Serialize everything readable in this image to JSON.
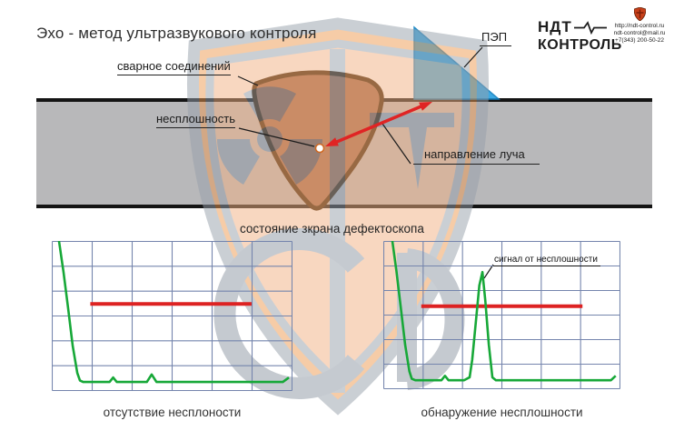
{
  "header": {
    "title": "Эхо - метод ультразвукового контроля",
    "brand": {
      "name_line1": "НДТ",
      "name_line2": "КОНТРОЛЬ",
      "website": "http://ndt-control.ru",
      "email": "ndt-control@mail.ru",
      "phone": "+7(343) 200-50-22"
    }
  },
  "diagram": {
    "caption": "состояние зкрана дефектоскопа",
    "labels": {
      "weld": "сварное соединений",
      "flaw": "несплошность",
      "probe": "ПЭП",
      "beam_direction": "направление луча"
    },
    "colors": {
      "plate": "#b8b8ba",
      "plate_edge": "#141414",
      "weld_fill": "#a1684a",
      "weld_outline": "#3c2104",
      "probe_blue": "#28a0e0",
      "probe_edge": "#1080c0",
      "beam_red": "#e02424",
      "flaw_dot": "#ffffff",
      "flaw_dot_ring": "#d06820"
    }
  },
  "chart_data": [
    {
      "type": "line",
      "title": "отсутствие несплоности",
      "grid": {
        "cols": 6,
        "rows": 6,
        "color": "#7585ad"
      },
      "x_range": [
        0,
        100
      ],
      "y_range": [
        0,
        100
      ],
      "series": [
        {
          "name": "echo-signal",
          "color": "#17a838",
          "points": [
            [
              3,
              100
            ],
            [
              4.9,
              79
            ],
            [
              6.8,
              55
            ],
            [
              8.7,
              30
            ],
            [
              10.6,
              12
            ],
            [
              11.7,
              7
            ],
            [
              13,
              6
            ],
            [
              22,
              6
            ],
            [
              24,
              6
            ],
            [
              25.5,
              9
            ],
            [
              27,
              6
            ],
            [
              36,
              6
            ],
            [
              39.5,
              6
            ],
            [
              41.5,
              11
            ],
            [
              43.5,
              6
            ],
            [
              60,
              6
            ],
            [
              96,
              6
            ],
            [
              98.5,
              9
            ]
          ]
        }
      ],
      "threshold": {
        "name": "gate-level",
        "color": "#dd2222",
        "y": 58,
        "x1": 16,
        "x2": 83
      },
      "legend": false
    },
    {
      "type": "line",
      "title": "обнаружение несплошности",
      "annotation": {
        "text": "сигнал от несплошности"
      },
      "grid": {
        "cols": 6,
        "rows": 6,
        "color": "#7585ad"
      },
      "x_range": [
        0,
        100
      ],
      "y_range": [
        0,
        100
      ],
      "series": [
        {
          "name": "echo-signal",
          "color": "#17a838",
          "points": [
            [
              3.8,
              100
            ],
            [
              5.5,
              80
            ],
            [
              7.3,
              56
            ],
            [
              9.2,
              30
            ],
            [
              11,
              12
            ],
            [
              12,
              7
            ],
            [
              13.5,
              6
            ],
            [
              22,
              6
            ],
            [
              24.5,
              6
            ],
            [
              26,
              9
            ],
            [
              27.5,
              6
            ],
            [
              34,
              6
            ],
            [
              36.4,
              8
            ],
            [
              37.5,
              20
            ],
            [
              39,
              45
            ],
            [
              40.5,
              70
            ],
            [
              41.8,
              79
            ],
            [
              43,
              60
            ],
            [
              44.5,
              30
            ],
            [
              46,
              8
            ],
            [
              47.5,
              6
            ],
            [
              60,
              6
            ],
            [
              96,
              6
            ],
            [
              98,
              9
            ]
          ]
        }
      ],
      "threshold": {
        "name": "gate-level",
        "color": "#dd2222",
        "y": 56,
        "x1": 16,
        "x2": 84
      },
      "legend": false
    }
  ]
}
